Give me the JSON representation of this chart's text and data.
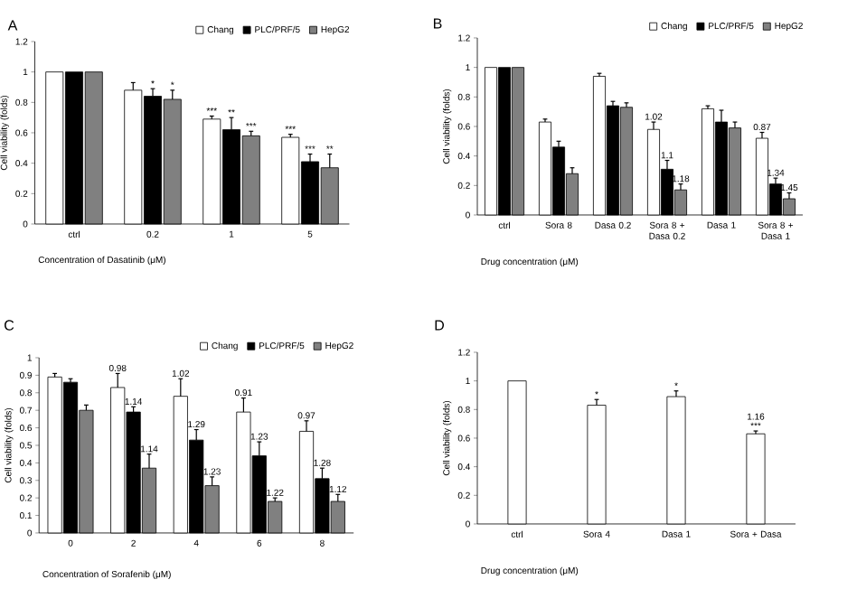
{
  "chart_data": [
    {
      "type": "bar",
      "annotations": [
        "A"
      ],
      "categories": [
        "ctrl",
        "0.2",
        "1",
        "5"
      ],
      "xlabel": "Concentration of Dasatinib (μM)",
      "ylabel": "Cell viability (folds)",
      "ylim": [
        0,
        1.2
      ],
      "yticks": [
        0,
        0.2,
        0.4,
        0.6,
        0.8,
        1,
        1.2
      ],
      "legend": "top right",
      "series": [
        {
          "name": "Chang",
          "color": "#ffffff",
          "values": [
            1,
            0.88,
            0.69,
            0.57
          ],
          "errors": [
            null,
            0.05,
            0.02,
            0.02
          ],
          "value_labels": [
            null,
            null,
            "***",
            "***"
          ]
        },
        {
          "name": "PLC/PRF/5",
          "color": "#000000",
          "values": [
            1,
            0.84,
            0.62,
            0.41
          ],
          "errors": [
            null,
            0.05,
            0.08,
            0.05
          ],
          "value_labels": [
            null,
            "*",
            "**",
            "***"
          ]
        },
        {
          "name": "HepG2",
          "color": "#808080",
          "values": [
            1,
            0.82,
            0.58,
            0.37
          ],
          "errors": [
            null,
            0.06,
            0.03,
            0.09
          ],
          "value_labels": [
            null,
            "*",
            "***",
            "**"
          ]
        }
      ]
    },
    {
      "type": "bar",
      "annotations": [
        "B",
        {
          "text": "1.02",
          "x": "Sora 8 + Dasa 0.2",
          "y": 0.58
        },
        {
          "text": "1.1",
          "x": "Sora 8 + Dasa 0.2",
          "y": 0.31
        },
        {
          "text": "1.18",
          "x": "Sora 8 + Dasa 0.2",
          "y": 0.17
        },
        {
          "text": "0.87",
          "x": "Sora 8 + Dasa 1",
          "y": 0.52
        },
        {
          "text": "1.34",
          "x": "Sora 8 + Dasa 1",
          "y": 0.21
        },
        {
          "text": "1.45",
          "x": "Sora 8 + Dasa 1",
          "y": 0.11
        }
      ],
      "categories": [
        "ctrl",
        "Sora 8",
        "Dasa 0.2",
        "Sora 8 + Dasa 0.2",
        "Dasa 1",
        "Sora 8 + Dasa 1"
      ],
      "xlabel": "Drug concentration (μM)",
      "ylabel": "Cell viability (folds)",
      "ylim": [
        0,
        1.2
      ],
      "yticks": [
        0,
        0.2,
        0.4,
        0.6,
        0.8,
        1,
        1.2
      ],
      "legend": "top right",
      "series": [
        {
          "name": "Chang",
          "color": "#ffffff",
          "values": [
            1,
            0.63,
            0.94,
            0.58,
            0.72,
            0.52
          ],
          "errors": [
            null,
            0.02,
            0.02,
            0.05,
            0.02,
            0.04
          ]
        },
        {
          "name": "PLC/PRF/5",
          "color": "#000000",
          "values": [
            1,
            0.46,
            0.74,
            0.31,
            0.63,
            0.21
          ],
          "errors": [
            null,
            0.04,
            0.03,
            0.06,
            0.08,
            0.04
          ]
        },
        {
          "name": "HepG2",
          "color": "#808080",
          "values": [
            1,
            0.28,
            0.73,
            0.17,
            0.59,
            0.11
          ],
          "errors": [
            null,
            0.04,
            0.03,
            0.04,
            0.04,
            0.04
          ]
        }
      ]
    },
    {
      "type": "bar",
      "annotations": [
        "C",
        {
          "text": "0.98",
          "x": "2",
          "y": 0.83
        },
        {
          "text": "1.02",
          "x": "4",
          "y": 0.78
        },
        {
          "text": "0.91",
          "x": "6",
          "y": 0.69
        },
        {
          "text": "0.97",
          "x": "8",
          "y": 0.58
        },
        {
          "text": "1.14",
          "x": "2",
          "y": 0.69
        },
        {
          "text": "1.29",
          "x": "4",
          "y": 0.53
        },
        {
          "text": "1.23",
          "x": "6",
          "y": 0.44
        },
        {
          "text": "1.28",
          "x": "8",
          "y": 0.31
        },
        {
          "text": "1.14",
          "x": "2",
          "y": 0.37
        },
        {
          "text": "1.23",
          "x": "4",
          "y": 0.27
        },
        {
          "text": "1.22",
          "x": "6",
          "y": 0.18
        },
        {
          "text": "1.12",
          "x": "8",
          "y": 0.18
        }
      ],
      "categories": [
        "0",
        "2",
        "4",
        "6",
        "8"
      ],
      "xlabel": "Concentration of Sorafenib (μM)",
      "ylabel": "Cell viability (folds)",
      "ylim": [
        0,
        1
      ],
      "yticks": [
        0,
        0.1,
        0.2,
        0.3,
        0.4,
        0.5,
        0.6,
        0.7,
        0.8,
        0.9,
        1
      ],
      "legend": "top right",
      "series": [
        {
          "name": "Chang",
          "color": "#ffffff",
          "values": [
            0.89,
            0.83,
            0.78,
            0.69,
            0.58
          ],
          "errors": [
            0.02,
            0.08,
            0.1,
            0.08,
            0.06
          ]
        },
        {
          "name": "PLC/PRF/5",
          "color": "#000000",
          "values": [
            0.86,
            0.69,
            0.53,
            0.44,
            0.31
          ],
          "errors": [
            0.02,
            0.03,
            0.06,
            0.08,
            0.06
          ]
        },
        {
          "name": "HepG2",
          "color": "#808080",
          "values": [
            0.7,
            0.37,
            0.27,
            0.18,
            0.18
          ],
          "errors": [
            0.03,
            0.08,
            0.05,
            0.02,
            0.04
          ]
        }
      ]
    },
    {
      "type": "bar",
      "annotations": [
        "D",
        {
          "text": "1.16",
          "x": "Sora + Dasa",
          "y": 0.63
        }
      ],
      "categories": [
        "ctrl",
        "Sora 4",
        "Dasa 1",
        "Sora + Dasa"
      ],
      "xlabel": "Drug concentration (μM)",
      "ylabel": "Cell viability (folds)",
      "ylim": [
        0,
        1.2
      ],
      "yticks": [
        0,
        0.2,
        0.4,
        0.6,
        0.8,
        1,
        1.2
      ],
      "series": [
        {
          "color": "#ffffff",
          "values": [
            1,
            0.83,
            0.89,
            0.63
          ],
          "errors": [
            null,
            0.04,
            0.04,
            0.02
          ],
          "value_labels": [
            null,
            "*",
            "*",
            "***"
          ]
        }
      ]
    }
  ]
}
